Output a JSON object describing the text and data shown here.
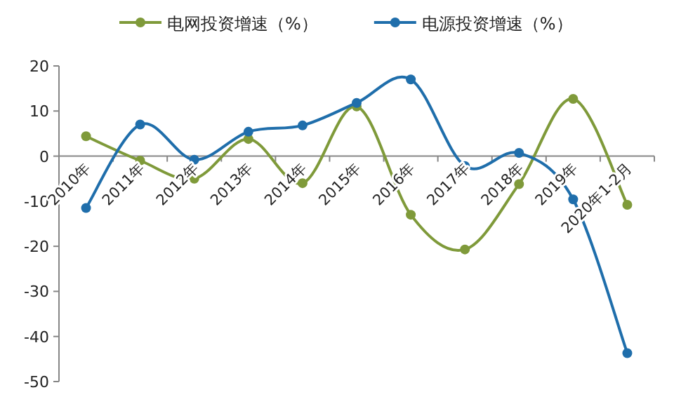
{
  "chart_data": {
    "type": "line",
    "categories": [
      "2010年",
      "2011年",
      "2012年",
      "2013年",
      "2014年",
      "2015年",
      "2016年",
      "2017年",
      "2018年",
      "2019年",
      "2020年1-2月"
    ],
    "series": [
      {
        "name": "电网投资增速（%）",
        "color": "#7f9a3a",
        "values": [
          4.4,
          -1,
          -5,
          3.8,
          -6,
          11,
          -13,
          -20.7,
          -6.2,
          12.7,
          -10.8
        ]
      },
      {
        "name": "电源投资增速（%）",
        "color": "#1f6eab",
        "values": [
          -11.5,
          7,
          -0.8,
          5.4,
          6.8,
          11.8,
          17,
          -2.2,
          0.7,
          -9.6,
          -43.7
        ]
      }
    ],
    "ylim": [
      -50,
      20
    ],
    "yticks": [
      -50,
      -40,
      -30,
      -20,
      -10,
      0,
      10,
      20
    ],
    "grid": false,
    "legend": "top",
    "marker": "circle",
    "line_style": "solid"
  }
}
